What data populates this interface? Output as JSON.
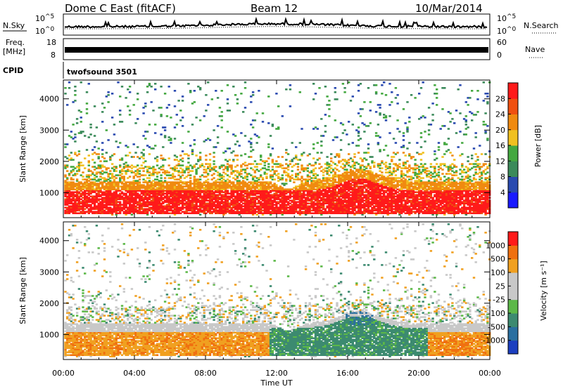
{
  "header": {
    "station": "Dome C East (fitACF)",
    "beam": "Beam 12",
    "date": "10/Mar/2014"
  },
  "top_panels": {
    "nsky_label": "N.Sky",
    "nsearch_label": "N.Search",
    "nsky_tick_top_base": "10",
    "nsky_tick_top_exp": "^5",
    "nsky_tick_bottom_base": "10",
    "nsky_tick_bottom_exp": "^0",
    "freq_label_1": "Freq.",
    "freq_label_2": "[MHz]",
    "freq_ticks": [
      "18",
      "8"
    ],
    "nave_label": "Nave",
    "nave_ticks": [
      "60",
      "0"
    ],
    "cpid_label": "CPID",
    "cpid_value": "twofsound 3501"
  },
  "chart_data": [
    {
      "type": "heatmap",
      "name": "power",
      "ylabel": "Slant Range [km]",
      "y_ticks": [
        "1000",
        "2000",
        "3000",
        "4000"
      ],
      "y_tick_values": [
        1000,
        2000,
        3000,
        4000
      ],
      "ylim": [
        200,
        4600
      ],
      "x_ticks": [
        "00:00",
        "04:00",
        "08:00",
        "12:00",
        "16:00",
        "20:00",
        "00:00"
      ],
      "x_tick_values": [
        0,
        4,
        8,
        12,
        16,
        20,
        24
      ],
      "xlim": [
        0,
        24
      ],
      "colorbar": {
        "label": "Power [dB]",
        "ticks": [
          "4",
          "8",
          "12",
          "16",
          "20",
          "24",
          "28"
        ],
        "colors": [
          "#1a1aff",
          "#2a4ab0",
          "#3b8a5a",
          "#44a840",
          "#f0c020",
          "#f08a10",
          "#f05010",
          "#ff1a1a"
        ]
      }
    },
    {
      "type": "heatmap",
      "name": "velocity",
      "ylabel": "Slant Range [km]",
      "y_ticks": [
        "1000",
        "2000",
        "3000",
        "4000"
      ],
      "y_tick_values": [
        1000,
        2000,
        3000,
        4000
      ],
      "ylim": [
        200,
        4600
      ],
      "x_ticks": [
        "00:00",
        "04:00",
        "08:00",
        "12:00",
        "16:00",
        "20:00",
        "00:00"
      ],
      "x_tick_values": [
        0,
        4,
        8,
        12,
        16,
        20,
        24
      ],
      "xlim": [
        0,
        24
      ],
      "xlabel": "Time UT",
      "colorbar": {
        "label": "Velocity [m s⁻¹]",
        "ticks": [
          "1000",
          "500",
          "100",
          "25",
          "-25",
          "-100",
          "-500",
          "-1000"
        ],
        "colors": [
          "#1c3fc0",
          "#2a6fa0",
          "#3c8a70",
          "#5cb848",
          "#c8c8c8",
          "#c8c8c8",
          "#f0a020",
          "#f07010",
          "#ff1a1a"
        ]
      }
    }
  ]
}
